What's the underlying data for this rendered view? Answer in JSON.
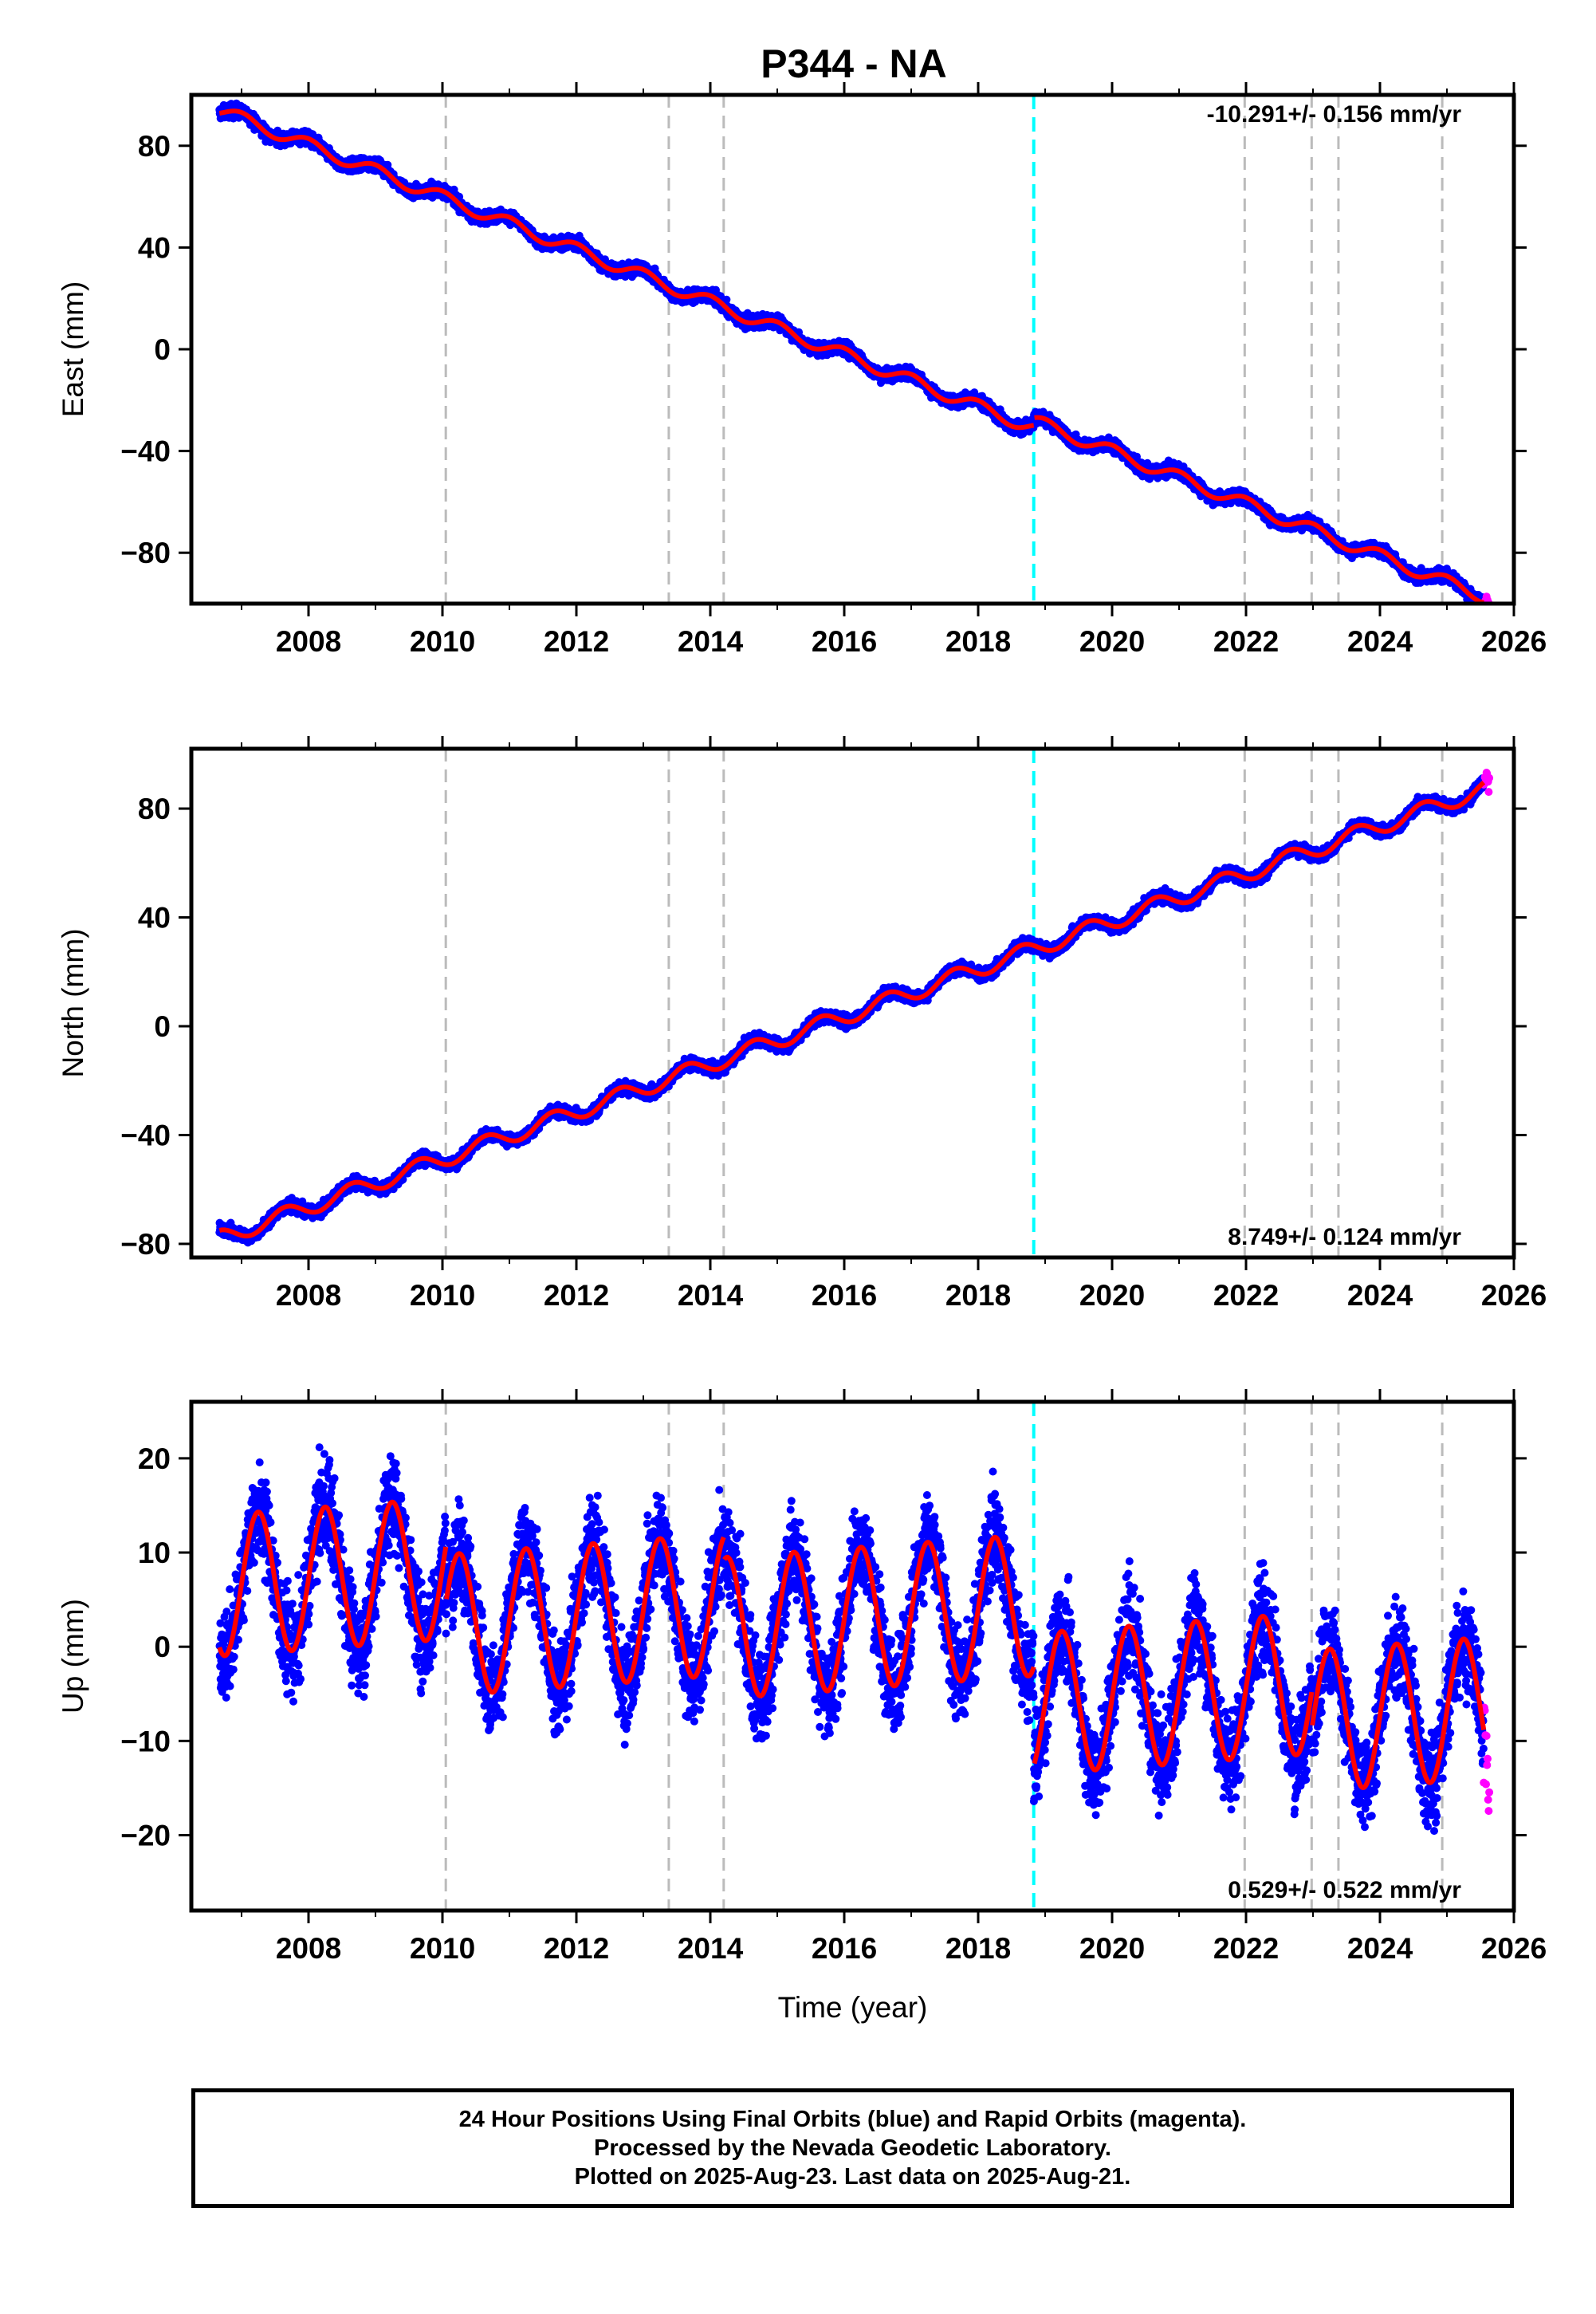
{
  "title": "P344 - NA",
  "colors": {
    "final_orbits": "#0000ff",
    "rapid_orbits": "#ff00ff",
    "model_fit": "#ff0000",
    "event_dashed": "#bbbbbb",
    "antenna_change": "#00ffff"
  },
  "footer": {
    "line1": "24 Hour Positions Using Final Orbits (blue) and Rapid Orbits (magenta).",
    "line2": "Processed by the Nevada Geodetic Laboratory.",
    "line3": "Plotted on 2025-Aug-23. Last data on 2025-Aug-21."
  },
  "chart_data": [
    {
      "type": "scatter",
      "panel": "east",
      "ylabel": "East (mm)",
      "xlabel": "",
      "xlim": [
        2006.25,
        2026.0
      ],
      "ylim": [
        -100,
        100
      ],
      "x_ticks": [
        2008,
        2010,
        2012,
        2014,
        2016,
        2018,
        2020,
        2022,
        2024,
        2026
      ],
      "y_ticks": [
        80,
        40,
        0,
        -40,
        -80
      ],
      "y_tick_labels": [
        "80",
        "40",
        "0",
        "−40",
        "−80"
      ],
      "rate_text": "-10.291+/- 0.156 mm/yr",
      "rate_position": "top-right",
      "model": {
        "x0": 2006.67,
        "y0": 94.0,
        "rate": -10.291,
        "annual_amp": 2.5,
        "annual_phase": 0.25,
        "offsets": [
          {
            "t": 2018.83,
            "dy": 3.0
          }
        ]
      },
      "final_range": [
        2006.67,
        2025.55
      ],
      "rapid_range": [
        2025.55,
        2025.64
      ],
      "noise_final": 1.8,
      "noise_rapid": 1.8,
      "events_gray": [
        2010.05,
        2013.38,
        2014.2,
        2021.98,
        2022.98,
        2023.38,
        2024.93
      ],
      "events_cyan": [
        2018.83
      ]
    },
    {
      "type": "scatter",
      "panel": "north",
      "ylabel": "North (mm)",
      "xlabel": "",
      "xlim": [
        2006.25,
        2026.0
      ],
      "ylim": [
        -85,
        102
      ],
      "x_ticks": [
        2008,
        2010,
        2012,
        2014,
        2016,
        2018,
        2020,
        2022,
        2024,
        2026
      ],
      "y_ticks": [
        80,
        40,
        0,
        -40,
        -80
      ],
      "y_tick_labels": [
        "80",
        "40",
        "0",
        "−40",
        "−80"
      ],
      "rate_text": "8.749+/- 0.124 mm/yr",
      "rate_position": "bottom-right",
      "model": {
        "x0": 2006.67,
        "y0": -78.0,
        "rate": 8.749,
        "annual_amp": 3.0,
        "annual_phase": 0.6,
        "offsets": []
      },
      "final_range": [
        2006.67,
        2025.55
      ],
      "rapid_range": [
        2025.55,
        2025.64
      ],
      "noise_final": 1.6,
      "noise_rapid": 2.5,
      "events_gray": [
        2010.05,
        2013.38,
        2014.2,
        2021.98,
        2022.98,
        2023.38,
        2024.93
      ],
      "events_cyan": [
        2018.83
      ]
    },
    {
      "type": "scatter",
      "panel": "up",
      "ylabel": "Up (mm)",
      "xlabel": "Time (year)",
      "xlim": [
        2006.25,
        2026.0
      ],
      "ylim": [
        -28,
        26
      ],
      "x_ticks": [
        2008,
        2010,
        2012,
        2014,
        2016,
        2018,
        2020,
        2022,
        2024,
        2026
      ],
      "y_ticks": [
        20,
        10,
        0,
        -10,
        -20
      ],
      "y_tick_labels": [
        "20",
        "10",
        "0",
        "−10",
        "−20"
      ],
      "rate_text": "0.529+/- 0.522 mm/yr",
      "rate_position": "bottom-right",
      "model": {
        "x0": 2006.67,
        "y0": 6.5,
        "rate": 0.529,
        "annual_amp": 7.5,
        "annual_phase": 0.0,
        "offsets": [
          {
            "t": 2010.05,
            "dy": -6.0
          },
          {
            "t": 2014.2,
            "dy": -2.5
          },
          {
            "t": 2018.83,
            "dy": -10.5
          },
          {
            "t": 2022.98,
            "dy": -4.0
          }
        ]
      },
      "final_range": [
        2006.67,
        2025.55
      ],
      "rapid_range": [
        2025.55,
        2025.64
      ],
      "noise_final": 3.6,
      "noise_rapid": 5.0,
      "events_gray": [
        2010.05,
        2013.38,
        2014.2,
        2021.98,
        2022.98,
        2023.38,
        2024.93
      ],
      "events_cyan": [
        2018.83
      ]
    }
  ]
}
